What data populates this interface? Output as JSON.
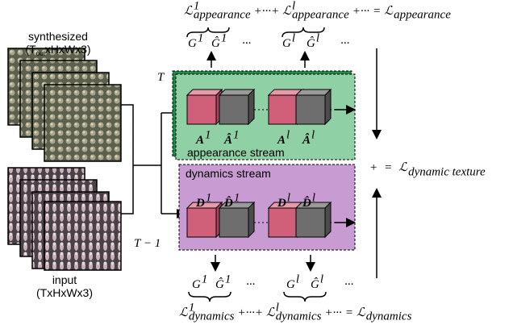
{
  "synthesized": {
    "label": "synthesized",
    "dims_open": "(T",
    "dims_sub": "out",
    "dims_close": "xHxWx3)"
  },
  "input": {
    "label": "input",
    "dims": "(TxHxWx3)"
  },
  "time": {
    "current": "T",
    "previous": "T − 1"
  },
  "appearance_stream": {
    "label": "appearance stream",
    "features": [
      {
        "symbol": "A",
        "sup": "1"
      },
      {
        "symbol": "Â",
        "sup": "1"
      },
      {
        "symbol": "A",
        "sup": "l"
      },
      {
        "symbol": "Â",
        "sup": "l"
      }
    ]
  },
  "dynamics_stream": {
    "label": "dynamics stream",
    "features": [
      {
        "symbol": "D",
        "sup": "1"
      },
      {
        "symbol": "D̂",
        "sup": "1"
      },
      {
        "symbol": "D",
        "sup": "l"
      },
      {
        "symbol": "D̂",
        "sup": "l"
      }
    ]
  },
  "appearance_grams": [
    {
      "symbol": "G",
      "sup": "1"
    },
    {
      "symbol": "Ĝ",
      "sup": "1"
    },
    "···",
    {
      "symbol": "G",
      "sup": "l"
    },
    {
      "symbol": "Ĝ",
      "sup": "l"
    },
    "···"
  ],
  "dynamics_grams": [
    {
      "symbol": "G",
      "sup": "1"
    },
    {
      "symbol": "Ĝ",
      "sup": "1"
    },
    "···",
    {
      "symbol": "G",
      "sup": "l"
    },
    {
      "symbol": "Ĝ",
      "sup": "l"
    },
    "···"
  ],
  "appearance_loss": [
    {
      "symbol": "ℒ",
      "sup": "1",
      "sub": "appearance"
    },
    "+···+",
    {
      "symbol": "ℒ",
      "sup": "l",
      "sub": "appearance"
    },
    "+···",
    "=",
    {
      "symbol": "ℒ",
      "sub": "appearance"
    }
  ],
  "dynamics_loss": [
    {
      "symbol": "ℒ",
      "sup": "1",
      "sub": "dynamics"
    },
    "+···+",
    {
      "symbol": "ℒ",
      "sup": "l",
      "sub": "dynamics"
    },
    "+···",
    "=",
    {
      "symbol": "ℒ",
      "sub": "dynamics"
    }
  ],
  "total_loss": [
    "+",
    "=",
    {
      "symbol": "ℒ",
      "sub": "dynamic texture"
    }
  ]
}
